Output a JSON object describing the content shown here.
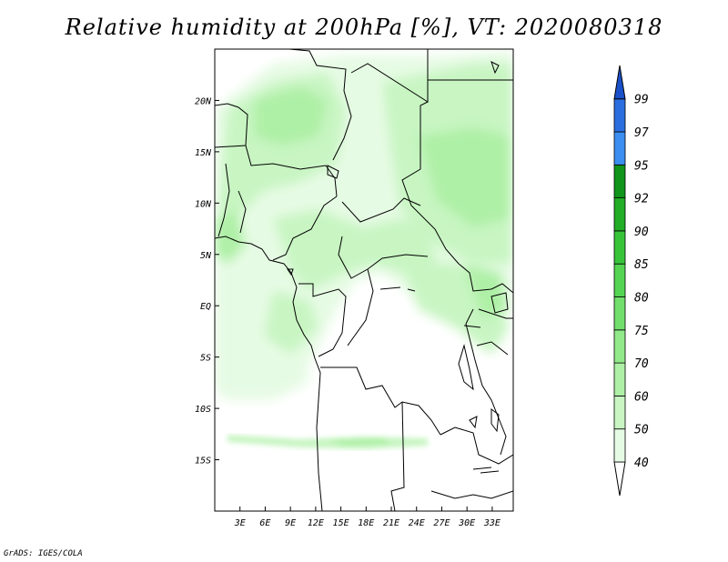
{
  "title": "Relative humidity at 200hPa [%], VT: 2020080318",
  "credit": "GrADS: IGES/COLA",
  "map": {
    "lon_range": [
      0,
      35.5
    ],
    "lat_range": [
      -20,
      25
    ],
    "lon_ticks": [
      {
        "value": 3,
        "label": "3E"
      },
      {
        "value": 6,
        "label": "6E"
      },
      {
        "value": 9,
        "label": "9E"
      },
      {
        "value": 12,
        "label": "12E"
      },
      {
        "value": 15,
        "label": "15E"
      },
      {
        "value": 18,
        "label": "18E"
      },
      {
        "value": 21,
        "label": "21E"
      },
      {
        "value": 24,
        "label": "24E"
      },
      {
        "value": 27,
        "label": "27E"
      },
      {
        "value": 30,
        "label": "30E"
      },
      {
        "value": 33,
        "label": "33E"
      }
    ],
    "lat_ticks": [
      {
        "value": 20,
        "label": "20N"
      },
      {
        "value": 15,
        "label": "15N"
      },
      {
        "value": 10,
        "label": "10N"
      },
      {
        "value": 5,
        "label": "5N"
      },
      {
        "value": 0,
        "label": "EQ"
      },
      {
        "value": -5,
        "label": "5S"
      },
      {
        "value": -10,
        "label": "10S"
      },
      {
        "value": -15,
        "label": "15S"
      }
    ]
  },
  "colorbar": {
    "levels": [
      "40",
      "50",
      "60",
      "70",
      "75",
      "80",
      "85",
      "90",
      "92",
      "95",
      "97",
      "99"
    ],
    "colors": [
      "#ffffff",
      "#e6fbe4",
      "#c8f5c2",
      "#aef0a6",
      "#92e98a",
      "#72df6c",
      "#54d452",
      "#38c43a",
      "#22ad26",
      "#10951a",
      "#3c8ef0",
      "#2a6ee0",
      "#1a50c8"
    ]
  }
}
